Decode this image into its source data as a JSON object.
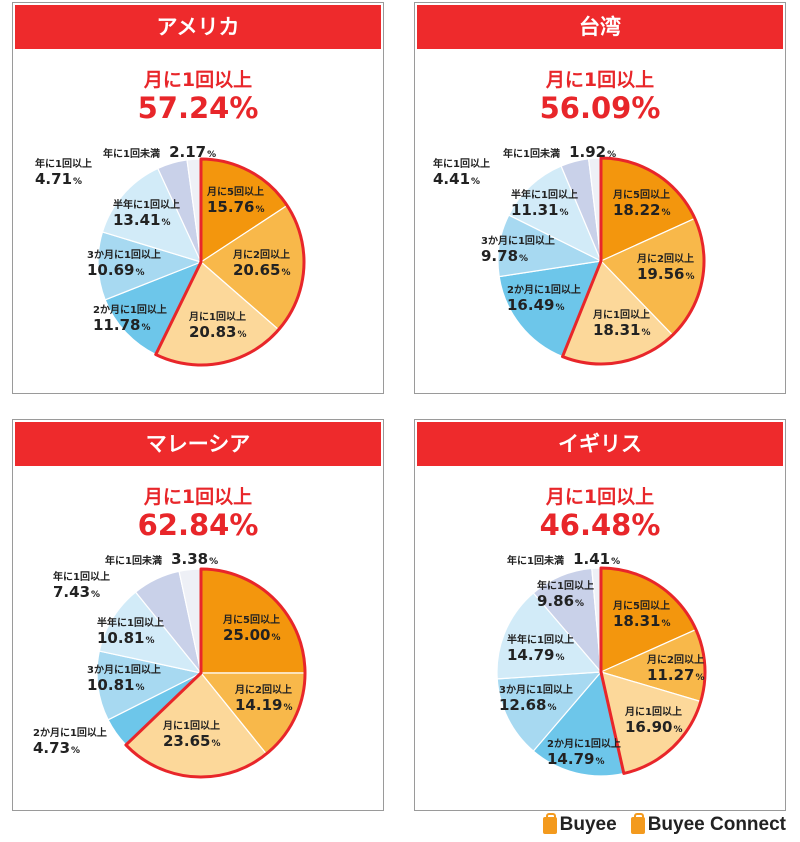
{
  "colors": {
    "s1": "#f3960d",
    "s2": "#f8b84a",
    "s3": "#fcd89a",
    "s4": "#6dc6ea",
    "s5": "#a7d9f1",
    "s6": "#d2ebf8",
    "s7": "#c9d1e9",
    "s8": "#eef0f6",
    "highlight": "#e8262a",
    "header": "#ee2a2c"
  },
  "chart_data": [
    {
      "type": "pie",
      "title": "アメリカ",
      "subtitle": "月に1回以上",
      "highlight_value": "57.24%",
      "highlight_slices": 3,
      "slices": [
        {
          "label": "月に5回以上",
          "value": 15.76
        },
        {
          "label": "月に2回以上",
          "value": 20.65
        },
        {
          "label": "月に1回以上",
          "value": 20.83
        },
        {
          "label": "2か月に1回以上",
          "value": 11.78
        },
        {
          "label": "3か月に1回以上",
          "value": 10.69
        },
        {
          "label": "半年に1回以上",
          "value": 13.41
        },
        {
          "label": "年に1回以上",
          "value": 4.71
        },
        {
          "label": "年に1回未満",
          "value": 2.17
        }
      ]
    },
    {
      "type": "pie",
      "title": "台湾",
      "subtitle": "月に1回以上",
      "highlight_value": "56.09%",
      "highlight_slices": 3,
      "slices": [
        {
          "label": "月に5回以上",
          "value": 18.22
        },
        {
          "label": "月に2回以上",
          "value": 19.56
        },
        {
          "label": "月に1回以上",
          "value": 18.31
        },
        {
          "label": "2か月に1回以上",
          "value": 16.49
        },
        {
          "label": "3か月に1回以上",
          "value": 9.78
        },
        {
          "label": "半年に1回以上",
          "value": 11.31
        },
        {
          "label": "年に1回以上",
          "value": 4.41
        },
        {
          "label": "年に1回未満",
          "value": 1.92
        }
      ]
    },
    {
      "type": "pie",
      "title": "マレーシア",
      "subtitle": "月に1回以上",
      "highlight_value": "62.84%",
      "highlight_slices": 3,
      "slices": [
        {
          "label": "月に5回以上",
          "value": 25.0
        },
        {
          "label": "月に2回以上",
          "value": 14.19
        },
        {
          "label": "月に1回以上",
          "value": 23.65
        },
        {
          "label": "2か月に1回以上",
          "value": 4.73
        },
        {
          "label": "3か月に1回以上",
          "value": 10.81
        },
        {
          "label": "半年に1回以上",
          "value": 10.81
        },
        {
          "label": "年に1回以上",
          "value": 7.43
        },
        {
          "label": "年に1回未満",
          "value": 3.38
        }
      ]
    },
    {
      "type": "pie",
      "title": "イギリス",
      "subtitle": "月に1回以上",
      "highlight_value": "46.48%",
      "highlight_slices": 3,
      "slices": [
        {
          "label": "月に5回以上",
          "value": 18.31
        },
        {
          "label": "月に2回以上",
          "value": 11.27
        },
        {
          "label": "月に1回以上",
          "value": 16.9
        },
        {
          "label": "2か月に1回以上",
          "value": 14.79
        },
        {
          "label": "3か月に1回以上",
          "value": 12.68
        },
        {
          "label": "半年に1回以上",
          "value": 14.79
        },
        {
          "label": "年に1回以上",
          "value": 9.86
        },
        {
          "label": "年に1回未満",
          "value": 1.41
        }
      ]
    }
  ],
  "footer": {
    "brand1": "Buyee",
    "brand2": "Buyee Connect"
  }
}
